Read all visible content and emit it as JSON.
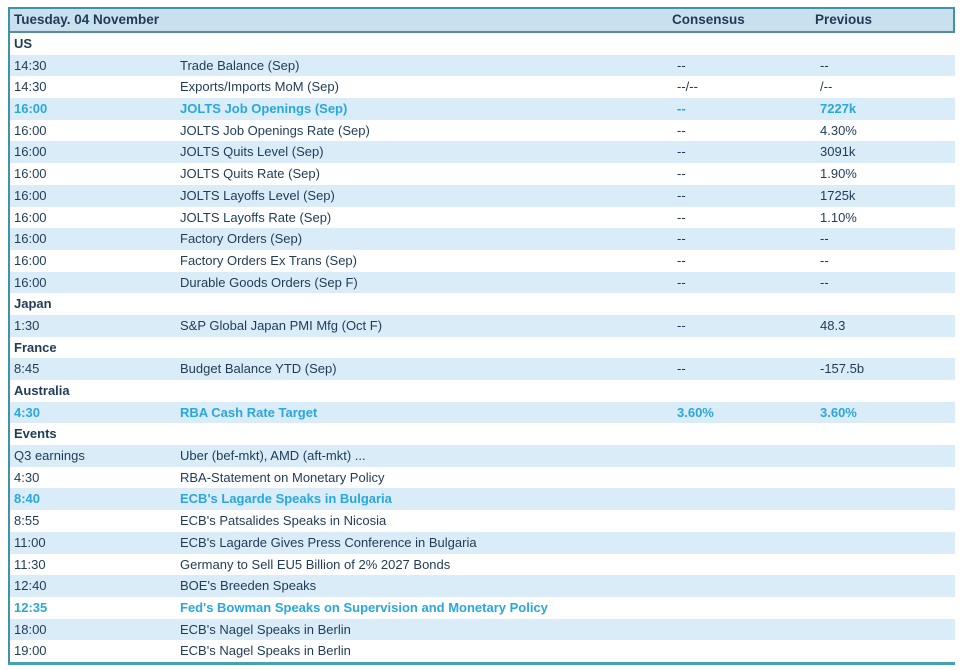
{
  "colors": {
    "accent_highlight": "#29a7de",
    "text_navy": "#1f3b57",
    "header_bg": "#c9e0ef",
    "row_alt_bg": "#d9ecf7",
    "border_teal": "#3f92a9"
  },
  "header": {
    "title": "Tuesday. 04 November",
    "consensus_label": "Consensus",
    "previous_label": "Previous"
  },
  "sections": [
    {
      "name": "US",
      "rows": [
        {
          "time": "14:30",
          "event": "Trade Balance (Sep)",
          "consensus": "--",
          "previous": "--",
          "highlight": false
        },
        {
          "time": "14:30",
          "event": "Exports/Imports MoM (Sep)",
          "consensus": "--/--",
          "previous": "/--",
          "highlight": false
        },
        {
          "time": "16:00",
          "event": "JOLTS Job Openings (Sep)",
          "consensus": "--",
          "previous": "7227k",
          "highlight": true
        },
        {
          "time": "16:00",
          "event": "JOLTS Job Openings Rate (Sep)",
          "consensus": "--",
          "previous": "4.30%",
          "highlight": false
        },
        {
          "time": "16:00",
          "event": "JOLTS Quits Level (Sep)",
          "consensus": "--",
          "previous": "3091k",
          "highlight": false
        },
        {
          "time": "16:00",
          "event": "JOLTS Quits Rate (Sep)",
          "consensus": "--",
          "previous": "1.90%",
          "highlight": false
        },
        {
          "time": "16:00",
          "event": "JOLTS Layoffs Level (Sep)",
          "consensus": "--",
          "previous": "1725k",
          "highlight": false
        },
        {
          "time": "16:00",
          "event": "JOLTS Layoffs Rate (Sep)",
          "consensus": "--",
          "previous": "1.10%",
          "highlight": false
        },
        {
          "time": "16:00",
          "event": "Factory Orders (Sep)",
          "consensus": "--",
          "previous": "--",
          "highlight": false
        },
        {
          "time": "16:00",
          "event": "Factory Orders Ex Trans (Sep)",
          "consensus": "--",
          "previous": "--",
          "highlight": false
        },
        {
          "time": "16:00",
          "event": "Durable Goods Orders (Sep F)",
          "consensus": "--",
          "previous": "--",
          "highlight": false
        }
      ]
    },
    {
      "name": "Japan",
      "rows": [
        {
          "time": "1:30",
          "event": "S&P Global Japan PMI Mfg (Oct F)",
          "consensus": "--",
          "previous": "48.3",
          "highlight": false
        }
      ]
    },
    {
      "name": "France",
      "rows": [
        {
          "time": "8:45",
          "event": "Budget Balance YTD (Sep)",
          "consensus": "--",
          "previous": "-157.5b",
          "highlight": false
        }
      ]
    },
    {
      "name": "Australia",
      "rows": [
        {
          "time": "4:30",
          "event": "RBA Cash Rate Target",
          "consensus": "3.60%",
          "previous": "3.60%",
          "highlight": true
        }
      ]
    },
    {
      "name": "Events",
      "rows": [
        {
          "time": "Q3 earnings",
          "event": "Uber (bef-mkt), AMD (aft-mkt) ...",
          "consensus": "",
          "previous": "",
          "highlight": false
        },
        {
          "time": "4:30",
          "event": "RBA-Statement on Monetary Policy",
          "consensus": "",
          "previous": "",
          "highlight": false
        },
        {
          "time": "8:40",
          "event": "ECB's Lagarde Speaks in Bulgaria",
          "consensus": "",
          "previous": "",
          "highlight": true
        },
        {
          "time": "8:55",
          "event": "ECB's Patsalides Speaks in Nicosia",
          "consensus": "",
          "previous": "",
          "highlight": false
        },
        {
          "time": "11:00",
          "event": "ECB's Lagarde Gives Press Conference in Bulgaria",
          "consensus": "",
          "previous": "",
          "highlight": false
        },
        {
          "time": "11:30",
          "event": "Germany to Sell EU5 Billion of 2% 2027 Bonds",
          "consensus": "",
          "previous": "",
          "highlight": false
        },
        {
          "time": "12:40",
          "event": "BOE's Breeden Speaks",
          "consensus": "",
          "previous": "",
          "highlight": false
        },
        {
          "time": "12:35",
          "event": "Fed's Bowman Speaks on Supervision and Monetary Policy",
          "consensus": "",
          "previous": "",
          "highlight": true
        },
        {
          "time": "18:00",
          "event": "ECB's Nagel Speaks in Berlin",
          "consensus": "",
          "previous": "",
          "highlight": false
        },
        {
          "time": "19:00",
          "event": "ECB's Nagel Speaks in Berlin",
          "consensus": "",
          "previous": "",
          "highlight": false
        }
      ]
    }
  ]
}
